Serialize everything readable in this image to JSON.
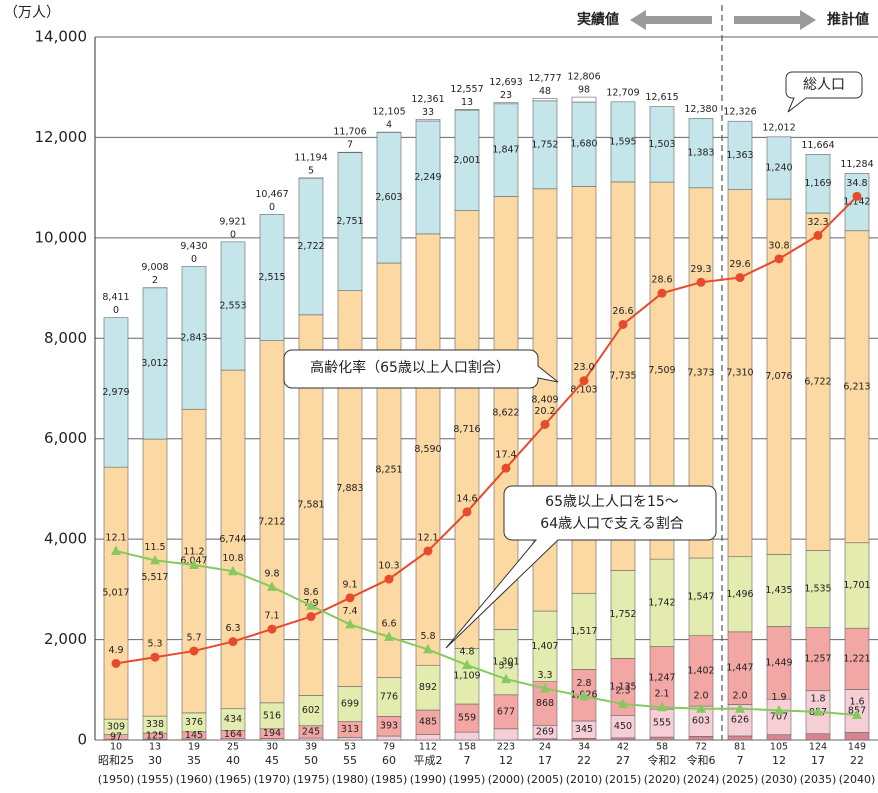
{
  "chart_data": {
    "type": "bar",
    "stacked": true,
    "unit_label": "（万人）",
    "categories": [
      "昭和25",
      "30",
      "35",
      "40",
      "45",
      "50",
      "55",
      "60",
      "平成2",
      "7",
      "12",
      "17",
      "22",
      "27",
      "令和2",
      "令和6",
      "7",
      "12",
      "17",
      "22"
    ],
    "years": [
      "(1950)",
      "(1955)",
      "(1960)",
      "(1965)",
      "(1970)",
      "(1975)",
      "(1980)",
      "(1985)",
      "(1990)",
      "(1995)",
      "(2000)",
      "(2005)",
      "(2010)",
      "(2015)",
      "(2020)",
      "(2024)",
      "(2025)",
      "(2030)",
      "(2035)",
      "(2040)"
    ],
    "ylim": [
      0,
      14000
    ],
    "yticks": [
      0,
      {
        "value": 2000,
        "label": "2,000"
      },
      {
        "value": 4000,
        "label": "4,000"
      },
      {
        "value": 6000,
        "label": "6,000"
      },
      {
        "value": 8000,
        "label": "8,000"
      },
      {
        "value": 10000,
        "label": "10,000"
      },
      {
        "value": 12000,
        "label": "12,000"
      },
      {
        "value": 14000,
        "label": "14,000"
      }
    ],
    "y2lim": [
      0,
      45
    ],
    "grid": true,
    "series": [
      {
        "color": "#d9838f",
        "values": [
          null,
          null,
          null,
          null,
          null,
          null,
          null,
          null,
          null,
          null,
          null,
          24,
          34,
          42,
          58,
          72,
          81,
          105,
          124,
          149
        ],
        "value_labels": [
          null,
          null,
          null,
          null,
          null,
          null,
          null,
          null,
          null,
          null,
          null,
          "24",
          "34",
          "42",
          "58",
          "72",
          "81",
          "105",
          "124",
          "149"
        ]
      },
      {
        "color": "#f6cfd6",
        "values": [
          10,
          13,
          19,
          25,
          30,
          39,
          53,
          79,
          112,
          158,
          223,
          269,
          345,
          450,
          555,
          603,
          626,
          707,
          857,
          857
        ],
        "value_labels": [
          "10",
          "13",
          "19",
          "25",
          "30",
          "39",
          "53",
          "79",
          "112",
          "158",
          "223",
          "269",
          "345",
          "450",
          "555",
          "603",
          "626",
          "707",
          "857",
          "857"
        ]
      },
      {
        "color": "#f2a7a4",
        "values": [
          97,
          125,
          145,
          164,
          194,
          245,
          313,
          393,
          485,
          559,
          677,
          868,
          1026,
          1135,
          1247,
          1402,
          1447,
          1449,
          1257,
          1221
        ],
        "value_labels": [
          "97",
          "125",
          "145",
          "164",
          "194",
          "245",
          "313",
          "393",
          "485",
          "559",
          "677",
          "868",
          "1,026",
          "1,135",
          "1,247",
          "1,402",
          "1,447",
          "1,449",
          "1,257",
          "1,221"
        ]
      },
      {
        "color": "#e3ecae",
        "values": [
          309,
          338,
          376,
          434,
          516,
          602,
          699,
          776,
          892,
          1109,
          1301,
          1407,
          1517,
          1752,
          1742,
          1547,
          1496,
          1435,
          1535,
          1701
        ],
        "value_labels": [
          "309",
          "338",
          "376",
          "434",
          "516",
          "602",
          "699",
          "776",
          "892",
          "1,109",
          "1,301",
          "1,407",
          "1,517",
          "1,752",
          "1,742",
          "1,547",
          "1,496",
          "1,435",
          "1,535",
          "1,701"
        ]
      },
      {
        "color": "#fcd9a2",
        "values": [
          5017,
          5517,
          6047,
          6744,
          7212,
          7581,
          7883,
          8251,
          8590,
          8716,
          8622,
          8409,
          8103,
          7735,
          7509,
          7373,
          7310,
          7076,
          6722,
          6213
        ],
        "value_labels": [
          "5,017",
          "5,517",
          "6,047",
          "6,744",
          "7,212",
          "7,581",
          "7,883",
          "8,251",
          "8,590",
          "8,716",
          "8,622",
          "8,409",
          "8,103",
          "7,735",
          "7,509",
          "7,373",
          "7,310",
          "7,076",
          "6,722",
          "6,213"
        ]
      },
      {
        "color": "#c4e6ea",
        "values": [
          2979,
          3012,
          2843,
          2553,
          2515,
          2722,
          2751,
          2603,
          2249,
          2001,
          1847,
          1752,
          1680,
          1595,
          1503,
          1383,
          1363,
          1240,
          1169,
          1142
        ],
        "value_labels": [
          "2,979",
          "3,012",
          "2,843",
          "2,553",
          "2,515",
          "2,722",
          "2,751",
          "2,603",
          "2,249",
          "2,001",
          "1,847",
          "1,752",
          "1,680",
          "1,595",
          "1,503",
          "1,383",
          "1,363",
          "1,240",
          "1,169",
          "1,142"
        ]
      },
      {
        "color": "#ffffff",
        "values": [
          0,
          2,
          0,
          0,
          0,
          5,
          7,
          4,
          33,
          13,
          23,
          48,
          98,
          null,
          null,
          null,
          null,
          null,
          null,
          null
        ],
        "value_labels": [
          "0",
          "2",
          "0",
          "0",
          "0",
          "5",
          "7",
          "4",
          "33",
          "13",
          "23",
          "48",
          "98",
          null,
          null,
          null,
          null,
          null,
          null,
          null
        ]
      }
    ],
    "totals": [
      8411,
      9008,
      9430,
      9921,
      10467,
      11194,
      11706,
      12105,
      12361,
      12557,
      12693,
      12777,
      12806,
      12709,
      12615,
      12380,
      12326,
      12012,
      11664,
      11284
    ],
    "total_labels": [
      "8,411",
      "9,008",
      "9,430",
      "9,921",
      "10,467",
      "11,194",
      "11,706",
      "12,105",
      "12,361",
      "12,557",
      "12,693",
      "12,777",
      "12,806",
      "12,709",
      "12,615",
      "12,380",
      "12,326",
      "12,012",
      "11,664",
      "11,284"
    ],
    "lines": [
      {
        "color": "#e64b2e",
        "marker": "circle",
        "axis": "y2",
        "values": [
          4.9,
          5.3,
          5.7,
          6.3,
          7.1,
          7.9,
          9.1,
          10.3,
          12.1,
          14.6,
          17.4,
          20.2,
          23.0,
          26.6,
          28.6,
          29.3,
          29.6,
          30.8,
          32.3,
          34.8
        ],
        "value_labels": [
          "4.9",
          "5.3",
          "5.7",
          "6.3",
          "7.1",
          "7.9",
          "9.1",
          "10.3",
          "12.1",
          "14.6",
          "17.4",
          "20.2",
          "23.0",
          "26.6",
          "28.6",
          "29.3",
          "29.6",
          "30.8",
          "32.3",
          "34.8"
        ]
      },
      {
        "color": "#86c95f",
        "marker": "triangle",
        "axis": "y2",
        "values": [
          12.1,
          11.5,
          11.2,
          10.8,
          9.8,
          8.6,
          7.4,
          6.6,
          5.8,
          4.8,
          3.9,
          3.3,
          2.8,
          2.3,
          2.1,
          2.0,
          2.0,
          1.9,
          1.8,
          1.6
        ],
        "value_labels": [
          "12.1",
          "11.5",
          "11.2",
          "10.8",
          "9.8",
          "8.6",
          "7.4",
          "6.6",
          "5.8",
          "4.8",
          "3.9",
          "3.3",
          "2.8",
          "2.3",
          "2.1",
          "2.0",
          "2.0",
          "1.9",
          "1.8",
          "1.6"
        ]
      }
    ],
    "annotations": {
      "actual": "実績値",
      "projected": "推計値",
      "total": "総人口",
      "aging_rate": "高齢化率（65歳以上人口割合）",
      "support_ratio": [
        "65歳以上人口を15～",
        "64歳人口で支える割合"
      ]
    }
  }
}
